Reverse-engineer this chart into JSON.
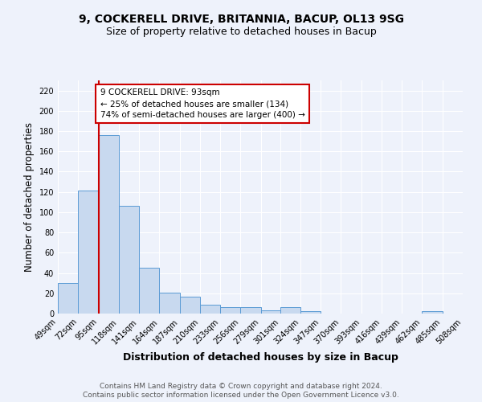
{
  "title1": "9, COCKERELL DRIVE, BRITANNIA, BACUP, OL13 9SG",
  "title2": "Size of property relative to detached houses in Bacup",
  "xlabel": "Distribution of detached houses by size in Bacup",
  "ylabel": "Number of detached properties",
  "bins": [
    49,
    72,
    95,
    118,
    141,
    164,
    187,
    210,
    233,
    256,
    279,
    301,
    324,
    347,
    370,
    393,
    416,
    439,
    462,
    485,
    508
  ],
  "counts": [
    30,
    121,
    176,
    106,
    45,
    21,
    17,
    9,
    6,
    6,
    3,
    6,
    2,
    0,
    0,
    0,
    0,
    0,
    2,
    0
  ],
  "bar_color": "#c8d9ef",
  "bar_edge_color": "#5b9bd5",
  "vline_color": "#cc0000",
  "vline_x": 95,
  "annotation_line1": "9 COCKERELL DRIVE: 93sqm",
  "annotation_line2": "← 25% of detached houses are smaller (134)",
  "annotation_line3": "74% of semi-detached houses are larger (400) →",
  "annotation_box_color": "white",
  "annotation_box_edge": "#cc0000",
  "ylim": [
    0,
    230
  ],
  "yticks": [
    0,
    20,
    40,
    60,
    80,
    100,
    120,
    140,
    160,
    180,
    200,
    220
  ],
  "tick_labels": [
    "49sqm",
    "72sqm",
    "95sqm",
    "118sqm",
    "141sqm",
    "164sqm",
    "187sqm",
    "210sqm",
    "233sqm",
    "256sqm",
    "279sqm",
    "301sqm",
    "324sqm",
    "347sqm",
    "370sqm",
    "393sqm",
    "416sqm",
    "439sqm",
    "462sqm",
    "485sqm",
    "508sqm"
  ],
  "footer1": "Contains HM Land Registry data © Crown copyright and database right 2024.",
  "footer2": "Contains public sector information licensed under the Open Government Licence v3.0.",
  "bg_color": "#eef2fb",
  "plot_bg_color": "#eef2fb",
  "title1_fontsize": 10,
  "title2_fontsize": 9,
  "xlabel_fontsize": 9,
  "ylabel_fontsize": 8.5,
  "tick_fontsize": 7,
  "footer_fontsize": 6.5
}
